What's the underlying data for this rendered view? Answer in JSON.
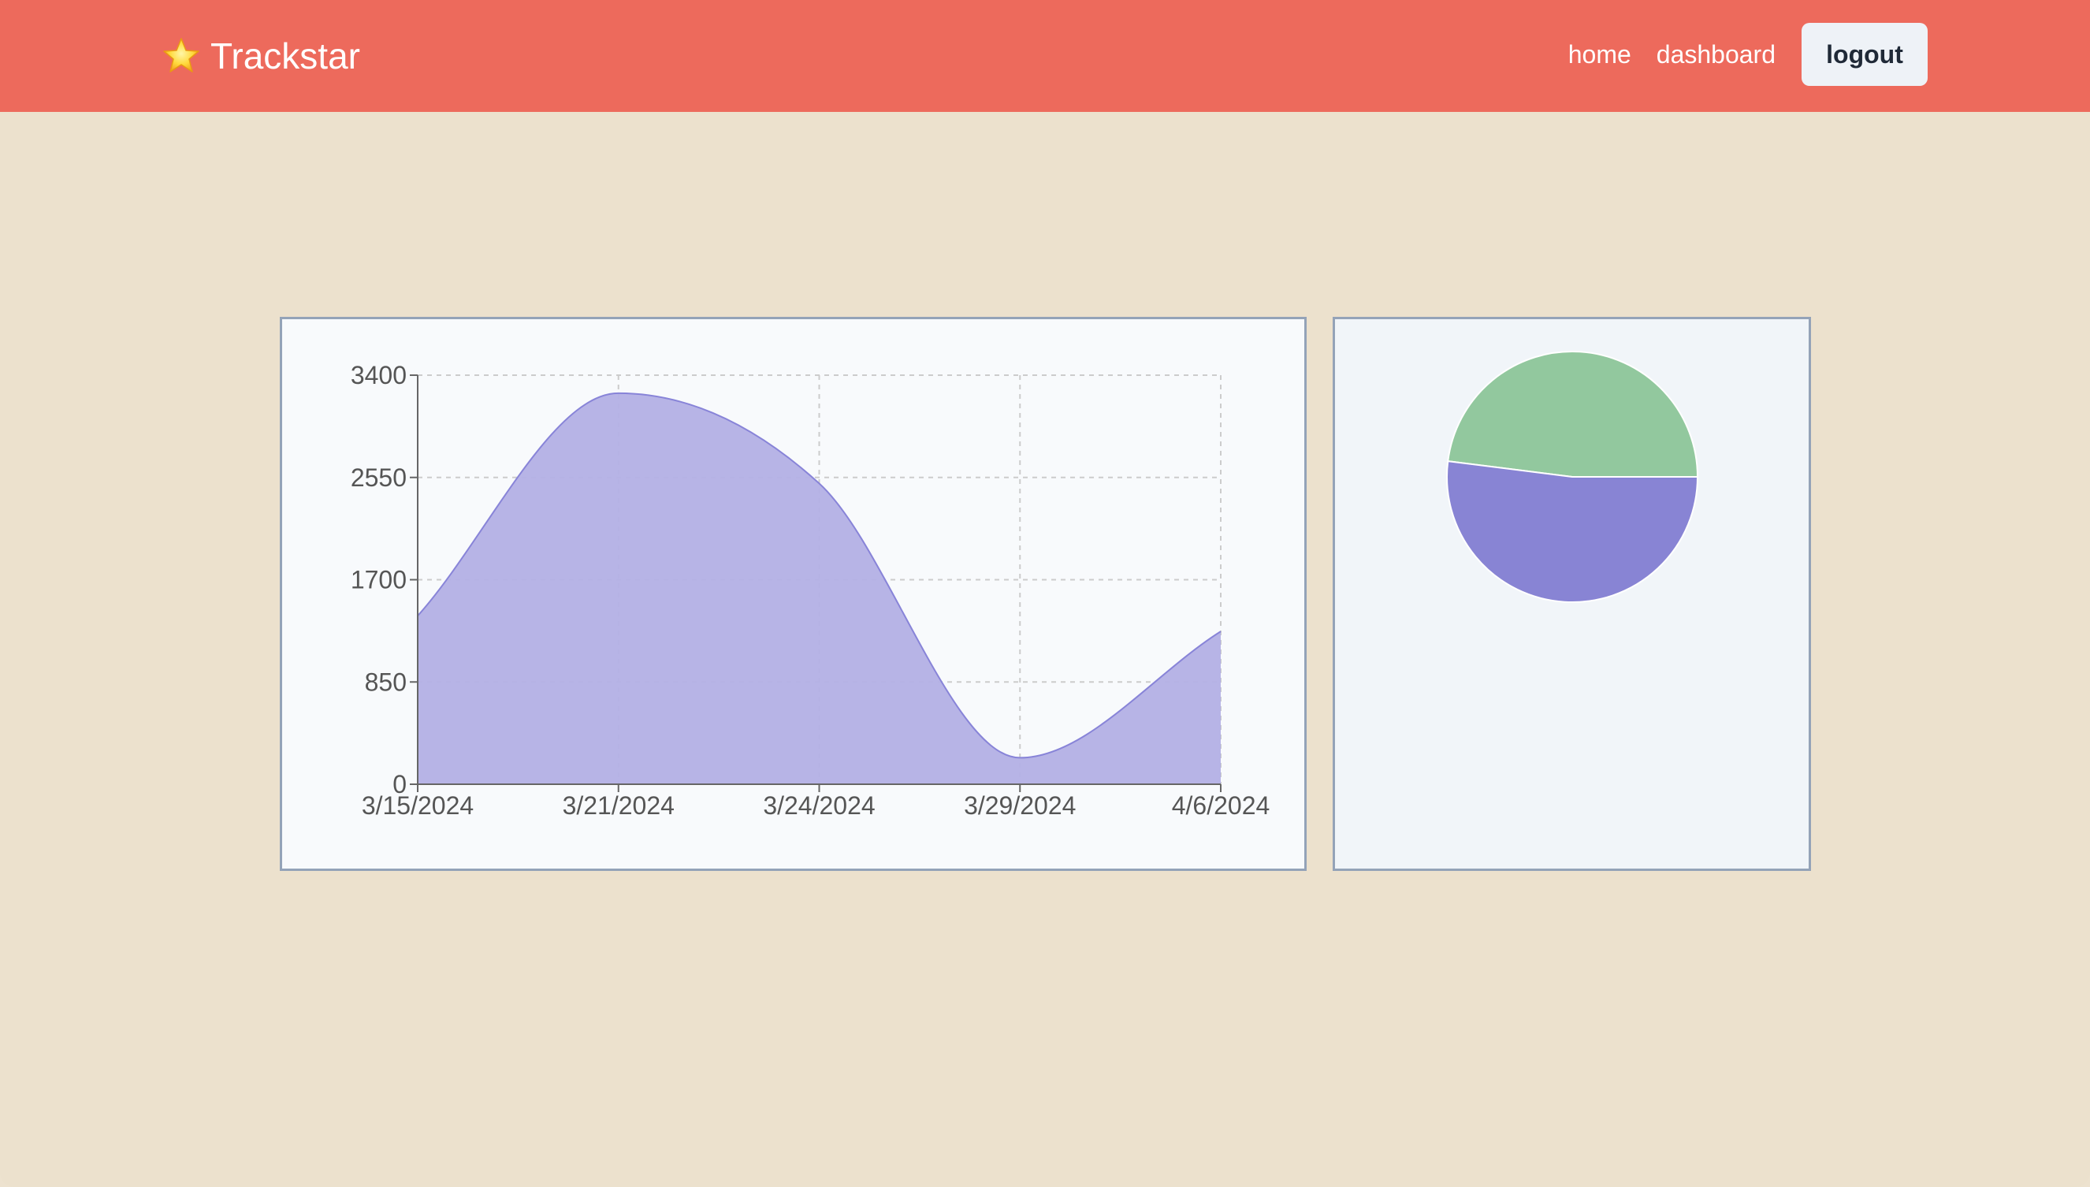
{
  "app": {
    "brand_name": "Trackstar",
    "brand_icon": "star-icon"
  },
  "nav": {
    "home_label": "home",
    "dashboard_label": "dashboard",
    "logout_label": "logout"
  },
  "colors": {
    "navbar": "#ed6a5c",
    "background": "#ece1cd",
    "area_fill": "#b3b0e5",
    "area_stroke": "#8884d8",
    "pie_green": "#92c89e",
    "pie_purple": "#8884d4",
    "panel_border": "#94a3b8"
  },
  "chart_data": [
    {
      "type": "area",
      "curve": "smooth",
      "x": [
        "3/15/2024",
        "3/21/2024",
        "3/24/2024",
        "3/29/2024",
        "4/6/2024"
      ],
      "y_ticks": [
        "0",
        "850",
        "1700",
        "2550",
        "3400"
      ],
      "ylim": [
        0,
        3400
      ],
      "grid": true,
      "series": [
        {
          "values": [
            1400,
            3250,
            2500,
            220,
            1270
          ]
        }
      ]
    },
    {
      "type": "pie",
      "slices": [
        {
          "value": 48,
          "color": "#92c89e"
        },
        {
          "value": 52,
          "color": "#8884d4"
        }
      ]
    }
  ]
}
